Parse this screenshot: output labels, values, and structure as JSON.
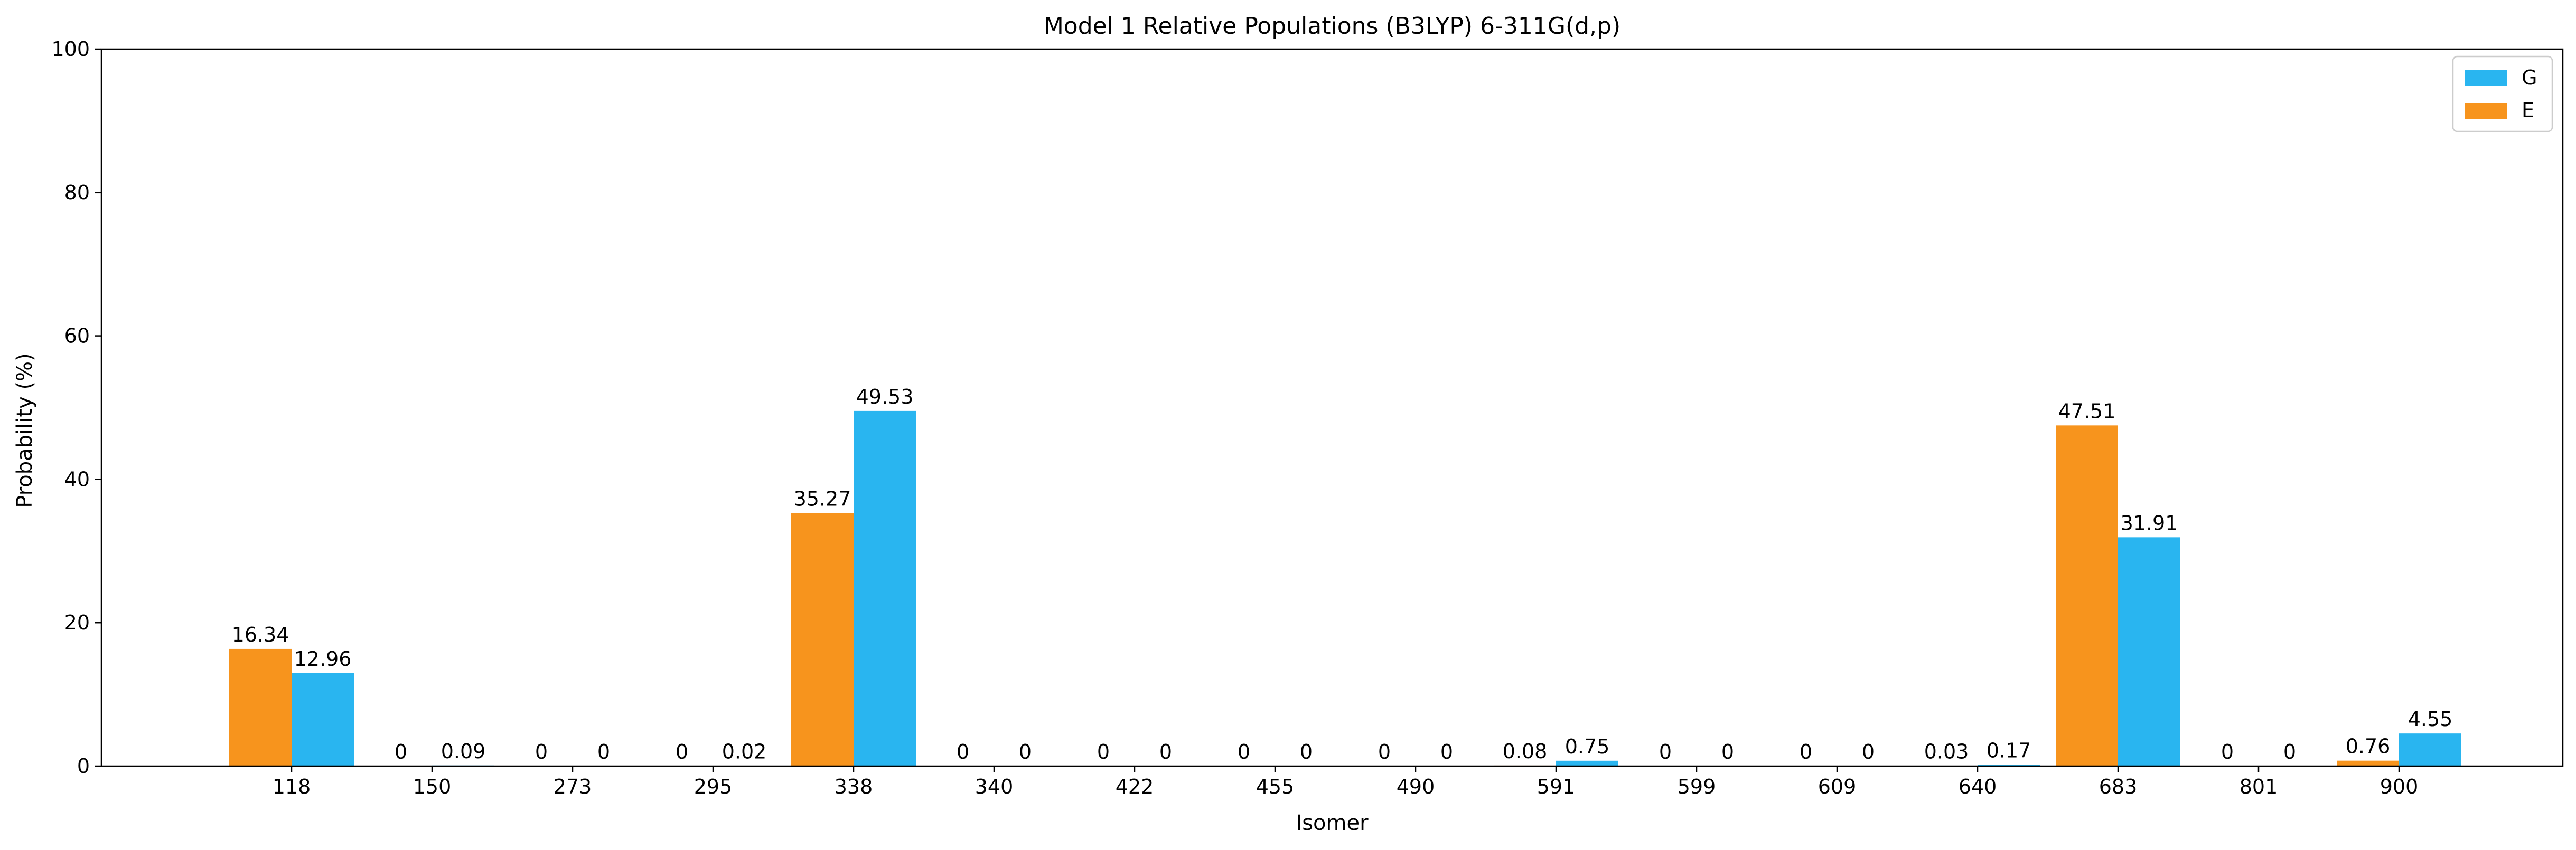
{
  "chart_data": {
    "type": "bar",
    "title": "Model 1 Relative Populations (B3LYP) 6-311G(d,p)",
    "xlabel": "Isomer",
    "ylabel": "Probability (%)",
    "ylim": [
      0,
      100
    ],
    "yticks": [
      "0",
      "20",
      "40",
      "60",
      "80",
      "100"
    ],
    "grid": false,
    "legend_position": "top-right",
    "categories": [
      "118",
      "150",
      "273",
      "295",
      "338",
      "340",
      "422",
      "455",
      "490",
      "591",
      "599",
      "609",
      "640",
      "683",
      "801",
      "900"
    ],
    "series": [
      {
        "name": "E",
        "color": "#f7941d",
        "values": [
          16.34,
          0,
          0,
          0,
          35.27,
          0,
          0,
          0,
          0,
          0.08,
          0,
          0,
          0.03,
          47.51,
          0,
          0.76
        ],
        "labels": [
          "16.34",
          "0",
          "0",
          "0",
          "35.27",
          "0",
          "0",
          "0",
          "0",
          "0.08",
          "0",
          "0",
          "0.03",
          "47.51",
          "0",
          "0.76"
        ]
      },
      {
        "name": "G",
        "color": "#29b5f0",
        "values": [
          12.96,
          0.09,
          0,
          0.02,
          49.53,
          0,
          0,
          0,
          0,
          0.75,
          0,
          0,
          0.17,
          31.91,
          0,
          4.55
        ],
        "labels": [
          "12.96",
          "0.09",
          "0",
          "0.02",
          "49.53",
          "0",
          "0",
          "0",
          "0",
          "0.75",
          "0",
          "0",
          "0.17",
          "31.91",
          "0",
          "4.55"
        ]
      }
    ],
    "legend_order": [
      "G",
      "E"
    ]
  }
}
